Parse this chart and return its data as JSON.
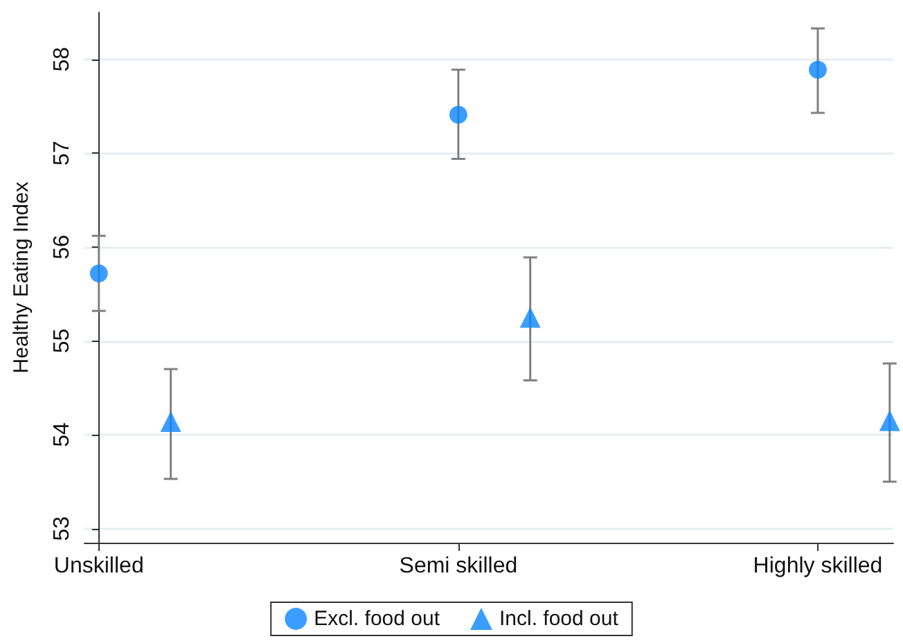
{
  "chart_data": {
    "type": "scatter",
    "ylabel": "Healthy Eating Index",
    "categories": [
      "Unskilled",
      "Semi skilled",
      "Highly skilled"
    ],
    "ylim": [
      52.85,
      58.5
    ],
    "yticks": [
      53,
      54,
      55,
      56,
      57,
      58
    ],
    "grid": "y",
    "legend": "bottom",
    "series": [
      {
        "name": "Excl. food out",
        "color": "#0a84ff",
        "marker": "circle",
        "values": [
          55.72,
          57.41,
          57.89
        ],
        "errors": [
          [
            55.32,
            56.12
          ],
          [
            56.94,
            57.89
          ],
          [
            57.43,
            58.33
          ]
        ]
      },
      {
        "name": "Incl. food out",
        "color": "#0a84ff",
        "marker": "triangle",
        "values": [
          54.14,
          55.25,
          54.15
        ],
        "errors": [
          [
            53.53,
            54.7
          ],
          [
            54.58,
            55.89
          ],
          [
            53.5,
            54.76
          ]
        ]
      }
    ]
  }
}
